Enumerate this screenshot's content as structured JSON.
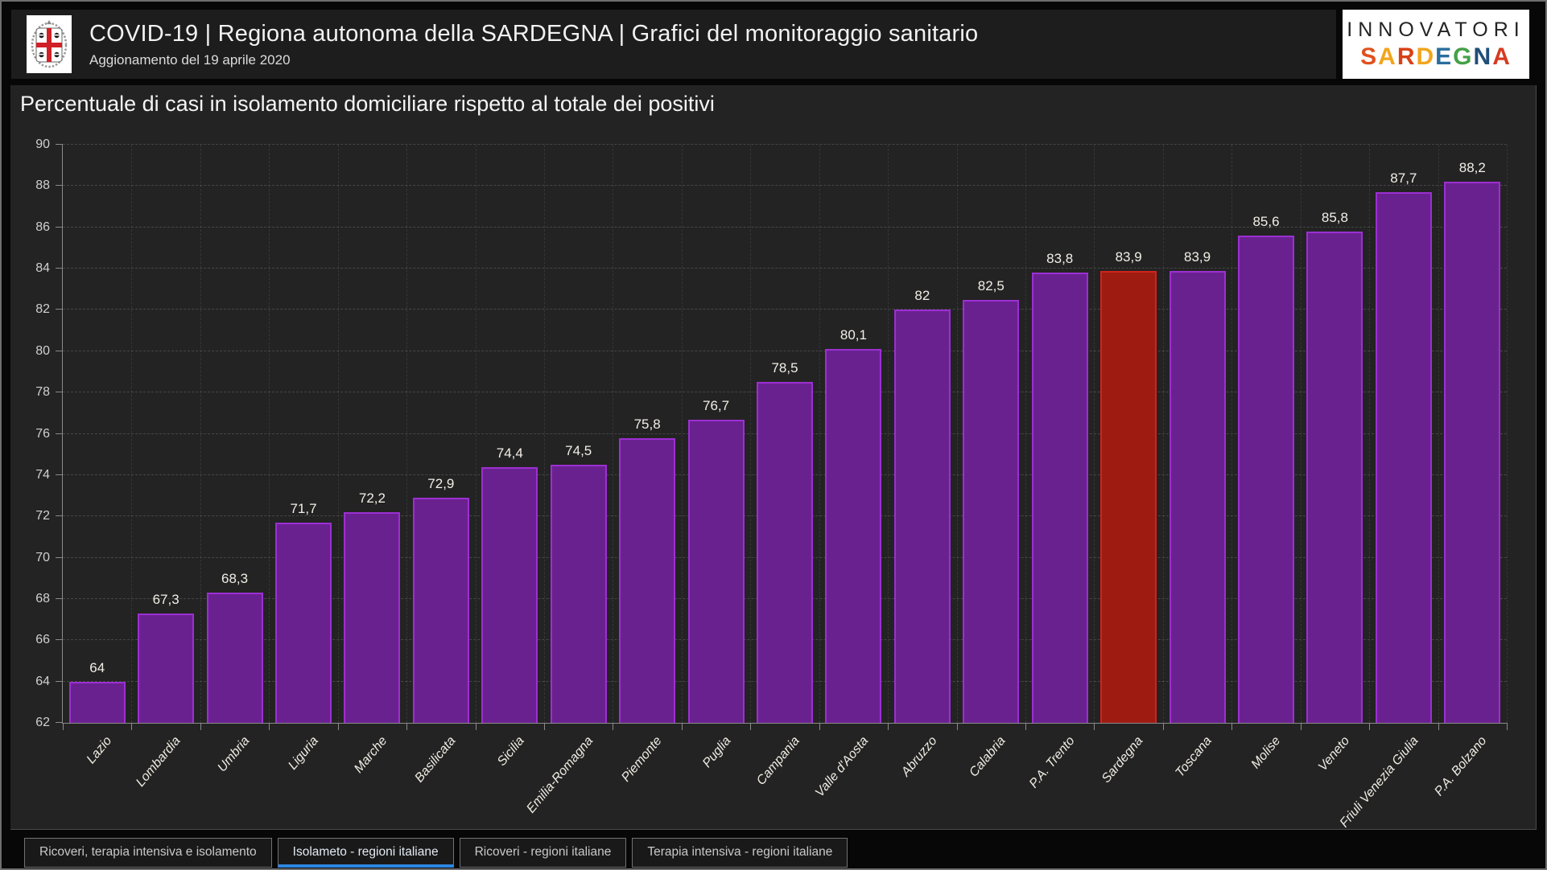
{
  "header": {
    "title": "COVID-19 | Regiona autonoma della SARDEGNA | Grafici del monitoraggio sanitario",
    "subtitle": "Aggionamento del 19 aprile 2020",
    "crest_icon": "stemma-sardegna-quattro-mori",
    "brand": {
      "line1": "INNOVATORI",
      "line2": "SARDEGNA",
      "letters": [
        {
          "ch": "S",
          "color": "#e0511c"
        },
        {
          "ch": "A",
          "color": "#f2a51d"
        },
        {
          "ch": "R",
          "color": "#d84117"
        },
        {
          "ch": "D",
          "color": "#f2a51d"
        },
        {
          "ch": "E",
          "color": "#2a6e9e"
        },
        {
          "ch": "G",
          "color": "#44a047"
        },
        {
          "ch": "N",
          "color": "#1f4e79"
        },
        {
          "ch": "A",
          "color": "#d63b22"
        }
      ]
    }
  },
  "chart_data": {
    "type": "bar",
    "title": "Percentuale di casi in isolamento domiciliare rispetto al totale dei positivi",
    "categories": [
      "Lazio",
      "Lombardia",
      "Umbria",
      "Liguria",
      "Marche",
      "Basilicata",
      "Sicilia",
      "Emilia-Romagna",
      "Piemonte",
      "Puglia",
      "Campania",
      "Valle d'Aosta",
      "Abruzzo",
      "Calabria",
      "P.A. Trento",
      "Sardegna",
      "Toscana",
      "Molise",
      "Veneto",
      "Friuli Venezia Giulia",
      "P.A. Bolzano"
    ],
    "values": [
      64,
      67.3,
      68.3,
      71.7,
      72.2,
      72.9,
      74.4,
      74.5,
      75.8,
      76.7,
      78.5,
      80.1,
      82,
      82.5,
      83.8,
      83.9,
      83.9,
      85.6,
      85.8,
      87.7,
      88.2
    ],
    "value_labels": [
      "64",
      "67,3",
      "68,3",
      "71,7",
      "72,2",
      "72,9",
      "74,4",
      "74,5",
      "75,8",
      "76,7",
      "78,5",
      "80,1",
      "82",
      "82,5",
      "83,8",
      "83,9",
      "83,9",
      "85,6",
      "85,8",
      "87,7",
      "88,2"
    ],
    "highlight_index": 15,
    "highlight_category": "Sardegna",
    "ylim": [
      62,
      90
    ],
    "ytick_step": 2,
    "grid": true,
    "legend": "none",
    "bar_color": "#6a2190",
    "bar_border_color": "#9c2fd2",
    "highlight_color": "#9e1b12",
    "highlight_border_color": "#d2231a"
  },
  "tabs": [
    {
      "label": "Ricoveri, terapia intensiva e isolamento",
      "slug": "ricoveri-terapia-intensiva-isolamento",
      "active": false
    },
    {
      "label": "Isolameto - regioni italiane",
      "slug": "isolamento-regioni-italiane",
      "active": true
    },
    {
      "label": "Ricoveri - regioni italiane",
      "slug": "ricoveri-regioni-italiane",
      "active": false
    },
    {
      "label": "Terapia intensiva - regioni italiane",
      "slug": "terapia-intensiva-regioni-italiane",
      "active": false
    }
  ],
  "colors": {
    "page_bg": "#070707",
    "card_bg": "#232323",
    "header_bg": "#1d1d1d",
    "axis": "#8a8a8a",
    "tab_active_underline": "#2e86e0"
  }
}
